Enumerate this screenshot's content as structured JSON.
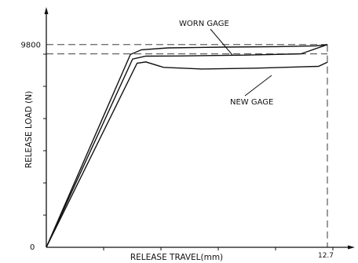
{
  "chart_data": {
    "type": "line",
    "title": "",
    "xlabel": "RELEASE TRAVEL(mm)",
    "ylabel": "RELEASE LOAD (N)",
    "xlim": [
      0,
      13.8
    ],
    "ylim": [
      0,
      11500
    ],
    "x_tick_labels": [
      {
        "x": 12.7,
        "label": "12.7"
      }
    ],
    "y_tick_labels": [
      {
        "y": 9800,
        "label": "9800"
      }
    ],
    "origin_label": "0",
    "grid": false,
    "series": [
      {
        "values": [
          [
            0,
            0
          ],
          [
            3.8,
            9320
          ],
          [
            4.3,
            9550
          ],
          [
            5.5,
            9640
          ],
          [
            8,
            9680
          ],
          [
            10.5,
            9700
          ],
          [
            12.2,
            9740
          ],
          [
            12.7,
            9800
          ]
        ]
      },
      {
        "values": [
          [
            0,
            0
          ],
          [
            3.9,
            9100
          ],
          [
            4.5,
            9240
          ],
          [
            6,
            9250
          ],
          [
            9,
            9290
          ],
          [
            11.5,
            9350
          ],
          [
            12.7,
            9800
          ]
        ]
      },
      {
        "values": [
          [
            0,
            0
          ],
          [
            4.1,
            8900
          ],
          [
            4.5,
            8960
          ],
          [
            5.3,
            8700
          ],
          [
            7,
            8620
          ],
          [
            9.5,
            8660
          ],
          [
            12.3,
            8750
          ],
          [
            12.7,
            8950
          ]
        ]
      }
    ],
    "reference_lines": [
      {
        "axis": "y",
        "value": 9800
      },
      {
        "axis": "y",
        "value": 9350
      },
      {
        "axis": "x",
        "value": 12.7
      }
    ],
    "annotations": [
      {
        "text": "WORN GAGE"
      },
      {
        "text": "NEW GAGE"
      }
    ]
  }
}
